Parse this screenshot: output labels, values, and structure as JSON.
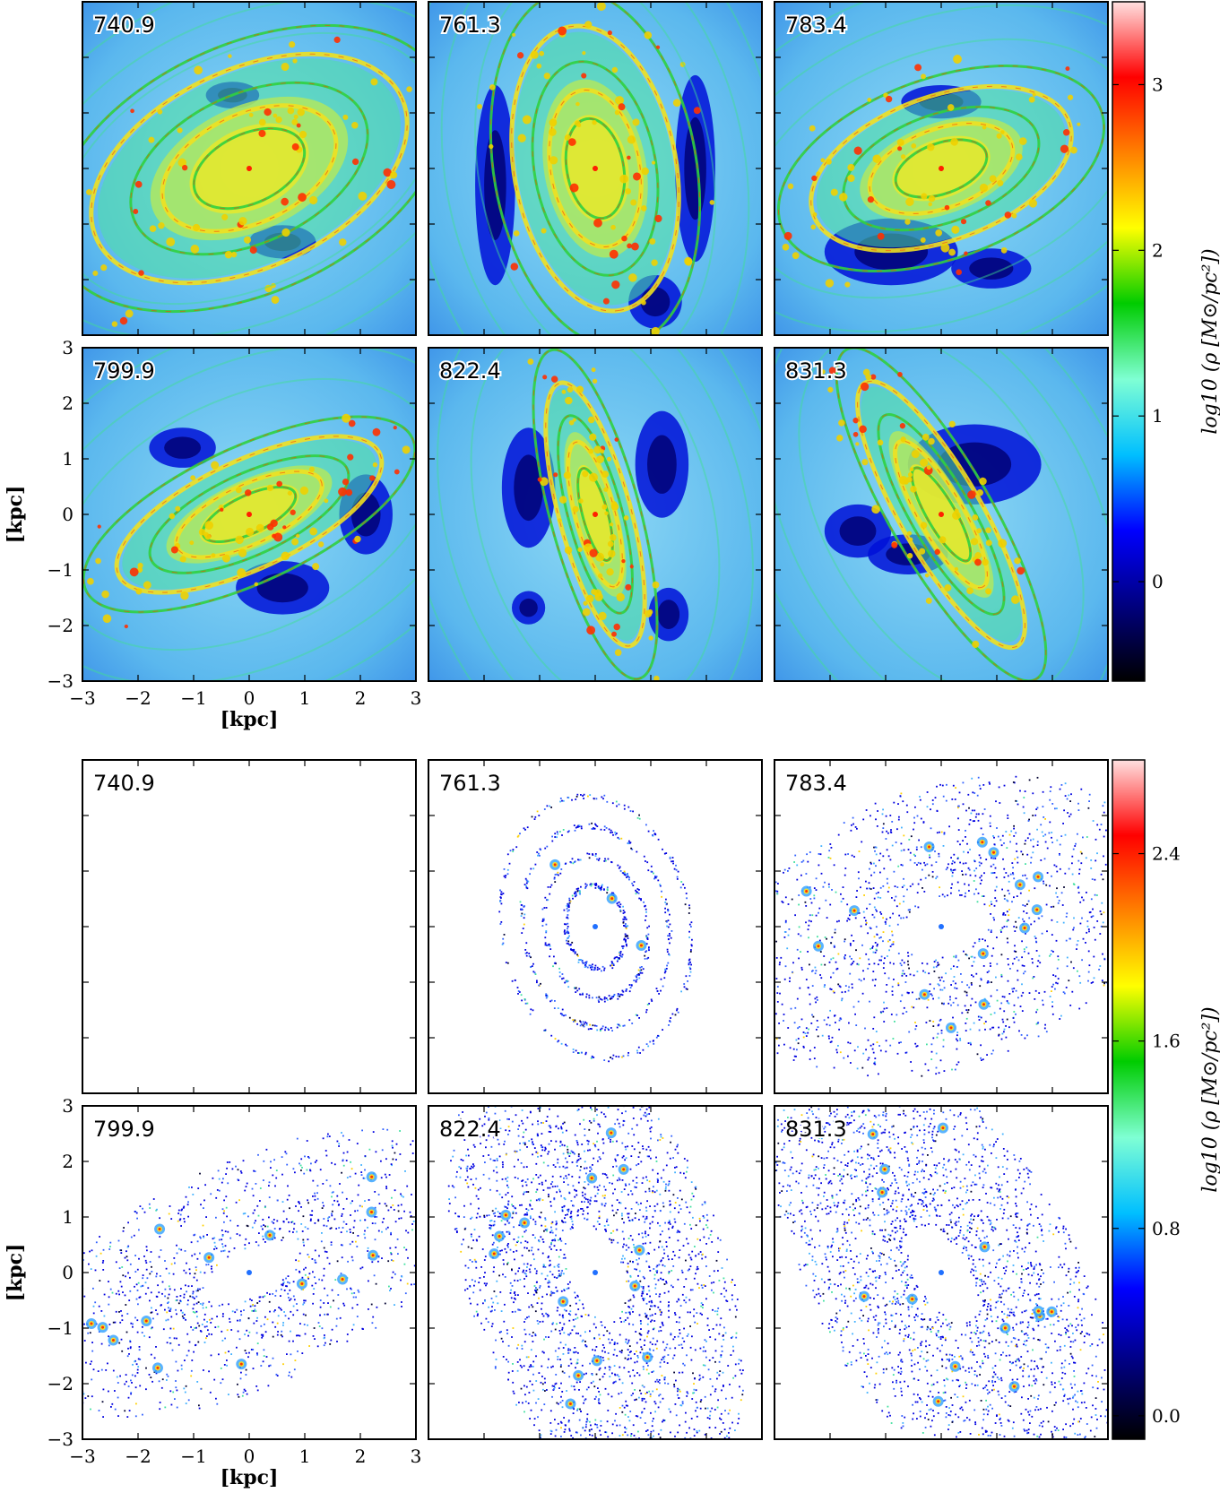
{
  "chart_data": [
    {
      "type": "heatmap",
      "block": "gas",
      "panels": [
        "740.9",
        "761.3",
        "783.4",
        "799.9",
        "822.4",
        "831.3"
      ],
      "xlabel": "[kpc]",
      "ylabel": "[kpc]",
      "xlim": [
        -3,
        3
      ],
      "ylim": [
        -3,
        3
      ],
      "xticks": [
        "−3",
        "−2",
        "−1",
        "0",
        "1",
        "2",
        "3"
      ],
      "yticks": [
        "−3",
        "−2",
        "−1",
        "0",
        "1",
        "2",
        "3"
      ],
      "colorbar": {
        "label": "log10 (ρ [M⊙/pc²])",
        "range": [
          -0.6,
          3.5
        ],
        "ticks": [
          "0",
          "1",
          "2",
          "3"
        ],
        "colormap": "jet-white"
      }
    },
    {
      "type": "heatmap",
      "block": "stars",
      "panels": [
        "740.9",
        "761.3",
        "783.4",
        "799.9",
        "822.4",
        "831.3"
      ],
      "xlabel": "[kpc]",
      "ylabel": "[kpc]",
      "xlim": [
        -3,
        3
      ],
      "ylim": [
        -3,
        3
      ],
      "xticks": [
        "−3",
        "−2",
        "−1",
        "0",
        "1",
        "2",
        "3"
      ],
      "yticks": [
        "−3",
        "−2",
        "−1",
        "0",
        "1",
        "2",
        "3"
      ],
      "colorbar": {
        "label": "log10 (ρ [M⊙/pc²])",
        "range": [
          -0.1,
          2.8
        ],
        "ticks": [
          "0.0",
          "0.8",
          "1.6",
          "2.4"
        ],
        "colormap": "jet-white"
      }
    }
  ],
  "colors": {
    "cmap": [
      "#000000",
      "#00007f",
      "#0000ff",
      "#00bfff",
      "#7fffd4",
      "#00cc00",
      "#ffff00",
      "#ff8000",
      "#ff0000",
      "#ffe0e0"
    ],
    "gas_background": "#6ec8f0",
    "frame": "#000000"
  }
}
